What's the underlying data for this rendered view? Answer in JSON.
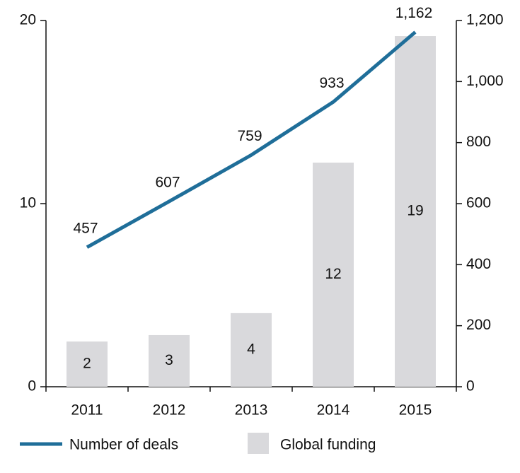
{
  "chart_data": {
    "type": "bar-line",
    "categories": [
      "2011",
      "2012",
      "2013",
      "2014",
      "2015"
    ],
    "series": [
      {
        "name": "Global funding",
        "type": "bar",
        "color": "#d9d9dc",
        "axis": "y",
        "values": [
          2.47,
          2.82,
          4.02,
          12.24,
          19.15
        ],
        "value_labels": [
          "2",
          "3",
          "4",
          "12",
          "19"
        ]
      },
      {
        "name": "Number of deals",
        "type": "line",
        "color": "#1f6e99",
        "axis": "y2",
        "values": [
          457,
          607,
          759,
          933,
          1162
        ],
        "value_labels": [
          "457",
          "607",
          "759",
          "933",
          "1,162"
        ]
      }
    ],
    "ylim": [
      0,
      20
    ],
    "yticks": [
      0,
      10,
      20
    ],
    "y2lim": [
      0,
      1200
    ],
    "y2ticks": [
      0,
      200,
      400,
      600,
      800,
      {
        "value": 1000,
        "label": "1,000"
      },
      {
        "value": 1200,
        "label": "1,200"
      }
    ],
    "legend": "bottom"
  }
}
